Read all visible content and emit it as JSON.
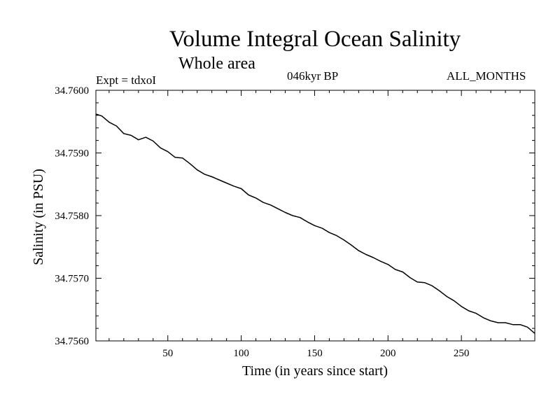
{
  "header": {
    "title": "Volume Integral Ocean Salinity",
    "subtitle": "Whole area",
    "expt": "Expt = tdxoI",
    "period": "046kyr BP",
    "months": "ALL_MONTHS"
  },
  "chart_data": {
    "type": "line",
    "title": "Volume Integral Ocean Salinity",
    "subtitle": "Whole area",
    "xlabel": "Time (in years since start)",
    "ylabel": "Salinity (in PSU)",
    "xlim": [
      1,
      300
    ],
    "ylim": [
      34.756,
      34.76
    ],
    "xticks": [
      50,
      100,
      150,
      200,
      250
    ],
    "yticks": [
      34.756,
      34.757,
      34.758,
      34.759,
      34.76
    ],
    "ytick_labels": [
      "34.7560",
      "34.7570",
      "34.7580",
      "34.7590",
      "34.7600"
    ],
    "grid": false,
    "legend": "none",
    "line_color": "#000000",
    "series": [
      {
        "x": [
          1,
          5,
          10,
          15,
          20,
          25,
          30,
          35,
          40,
          45,
          50,
          55,
          60,
          65,
          70,
          75,
          80,
          85,
          90,
          95,
          100,
          105,
          110,
          115,
          120,
          125,
          130,
          135,
          140,
          145,
          150,
          155,
          160,
          165,
          170,
          175,
          180,
          185,
          190,
          195,
          200,
          205,
          210,
          215,
          220,
          225,
          230,
          235,
          240,
          245,
          250,
          255,
          260,
          265,
          270,
          275,
          280,
          285,
          290,
          295,
          300
        ],
        "y": [
          34.75962,
          34.75959,
          34.75949,
          34.75943,
          34.75931,
          34.75928,
          34.75921,
          34.75925,
          34.75919,
          34.75908,
          34.75902,
          34.75893,
          34.75892,
          34.75883,
          34.75873,
          34.75866,
          34.75862,
          34.75857,
          34.75852,
          34.75847,
          34.75843,
          34.75833,
          34.75828,
          34.75821,
          34.75817,
          34.75811,
          34.75805,
          34.758,
          34.75797,
          34.7579,
          34.75784,
          34.7578,
          34.75773,
          34.75768,
          34.75761,
          34.75753,
          34.75744,
          34.75738,
          34.75733,
          34.75727,
          34.75722,
          34.75714,
          34.7571,
          34.75701,
          34.75694,
          34.75693,
          34.75688,
          34.7568,
          34.75671,
          34.75664,
          34.75655,
          34.75648,
          34.75644,
          34.75637,
          34.75632,
          34.75629,
          34.75629,
          34.75626,
          34.75626,
          34.75622,
          34.75612
        ]
      }
    ]
  }
}
